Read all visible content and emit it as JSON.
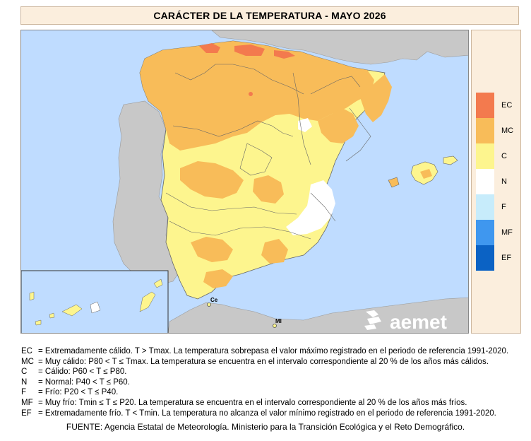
{
  "title": "CARÁCTER DE LA TEMPERATURA - MAYO 2026",
  "colors": {
    "sea": "#bfdcff",
    "land_other": "#c8c8c8",
    "EC": "#f37a4e",
    "MC": "#f8bc59",
    "C": "#fdf58e",
    "N": "#ffffff",
    "F": "#c7ecfb",
    "MF": "#3f97ef",
    "EF": "#0b62c4"
  },
  "legend": [
    {
      "code": "EC",
      "color": "#f37a4e"
    },
    {
      "code": "MC",
      "color": "#f8bc59"
    },
    {
      "code": "C",
      "color": "#fdf58e"
    },
    {
      "code": "N",
      "color": "#ffffff"
    },
    {
      "code": "F",
      "color": "#c7ecfb"
    },
    {
      "code": "MF",
      "color": "#3f97ef"
    },
    {
      "code": "EF",
      "color": "#0b62c4"
    }
  ],
  "map_labels": {
    "ceuta": "Ce",
    "melilla": "Ml",
    "logo": "aemet"
  },
  "definitions": [
    {
      "code": "EC",
      "text": "= Extremadamente cálido. T > Tmax. La temperatura sobrepasa el valor máximo registrado en el periodo de referencia 1991-2020."
    },
    {
      "code": "MC",
      "text": "= Muy cálido: P80 < T ≤ Tmax. La temperatura se encuentra en el intervalo correspondiente al 20 % de los años más cálidos."
    },
    {
      "code": "C",
      "text": "= Cálido: P60 < T ≤ P80."
    },
    {
      "code": "N",
      "text": "= Normal: P40 < T ≤ P60."
    },
    {
      "code": "F",
      "text": "= Frío: P20 < T ≤ P40."
    },
    {
      "code": "MF",
      "text": "= Muy frío: Tmin ≤ T ≤ P20. La temperatura se encuentra en el intervalo correspondiente al 20 % de los años más fríos."
    },
    {
      "code": "EF",
      "text": "= Extremadamente frío. T < Tmin. La temperatura no alcanza el valor mínimo registrado en el periodo de referencia 1991-2020."
    }
  ],
  "source": "FUENTE: Agencia Estatal de Meteorología. Ministerio para la Transición Ecológica y el Reto Demográfico."
}
